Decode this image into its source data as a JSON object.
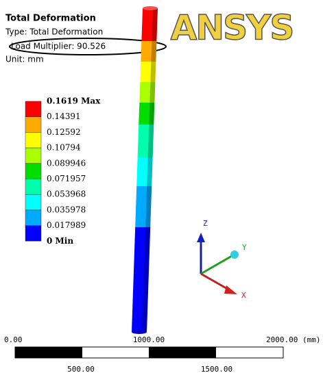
{
  "header": {
    "title": "Total Deformation",
    "type": "Type: Total Deformation",
    "load_multiplier": "Load Multiplier: 90.526",
    "unit": "Unit: mm"
  },
  "logo": "ANSYS",
  "legend": [
    "0.1619 Max",
    "0.14391",
    "0.12592",
    "0.10794",
    "0.089946",
    "0.071957",
    "0.053968",
    "0.035978",
    "0.017989",
    "0 Min"
  ],
  "triad": {
    "z": "Z",
    "y": "Y",
    "x": "X"
  },
  "scale_bar": {
    "top": [
      "0.00",
      "1000.00",
      "2000.00 (mm)"
    ],
    "bottom": [
      "500.00",
      "1500.00"
    ]
  }
}
